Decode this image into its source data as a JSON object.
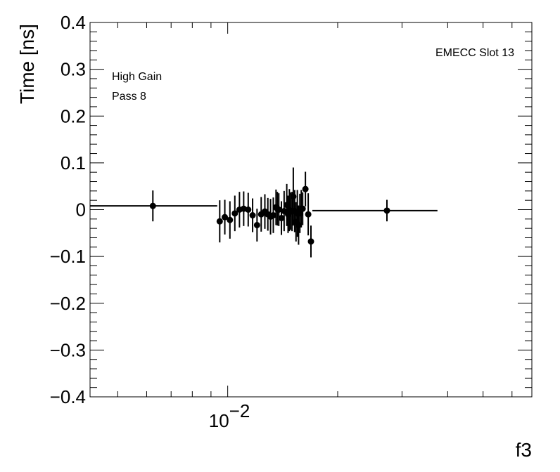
{
  "chart_data": {
    "type": "scatter",
    "ylabel": "Time [ns]",
    "xlabel": "f3",
    "xscale": "log",
    "xlim": [
      0.0042,
      0.068
    ],
    "ylim": [
      -0.4,
      0.4
    ],
    "grid": false,
    "yticks": [
      {
        "value": -0.4,
        "label": "−0.4"
      },
      {
        "value": -0.3,
        "label": "−0.3"
      },
      {
        "value": -0.2,
        "label": "−0.2"
      },
      {
        "value": -0.1,
        "label": "−0.1"
      },
      {
        "value": 0,
        "label": "0"
      },
      {
        "value": 0.1,
        "label": "0.1"
      },
      {
        "value": 0.2,
        "label": "0.2"
      },
      {
        "value": 0.3,
        "label": "0.3"
      },
      {
        "value": 0.4,
        "label": "0.4"
      }
    ],
    "xticks": [
      {
        "value": 0.01,
        "label_base": "10",
        "label_exp": "−2"
      }
    ],
    "annotations": {
      "top_right": "EMECC Slot 13",
      "line1": "High Gain",
      "line2": "Pass 8"
    },
    "points": [
      {
        "x": 0.00624,
        "y": 0.008,
        "xlo": 0.0042,
        "xhi": 0.00936,
        "yerr": 0.033
      },
      {
        "x": 0.00951,
        "y": -0.025,
        "xlo": 0.00936,
        "xhi": 0.00966,
        "yerr": 0.045
      },
      {
        "x": 0.00982,
        "y": -0.016,
        "xlo": 0.00966,
        "xhi": 0.00998,
        "yerr": 0.037
      },
      {
        "x": 0.01014,
        "y": -0.022,
        "xlo": 0.00998,
        "xhi": 0.0103,
        "yerr": 0.04
      },
      {
        "x": 0.01046,
        "y": -0.008,
        "xlo": 0.0103,
        "xhi": 0.01062,
        "yerr": 0.038
      },
      {
        "x": 0.01077,
        "y": 0.0,
        "xlo": 0.01062,
        "xhi": 0.01092,
        "yerr": 0.038
      },
      {
        "x": 0.01106,
        "y": 0.002,
        "xlo": 0.01092,
        "xhi": 0.01121,
        "yerr": 0.037
      },
      {
        "x": 0.01138,
        "y": 0.0,
        "xlo": 0.01121,
        "xhi": 0.01154,
        "yerr": 0.036
      },
      {
        "x": 0.0117,
        "y": -0.012,
        "xlo": 0.01154,
        "xhi": 0.01186,
        "yerr": 0.036
      },
      {
        "x": 0.01203,
        "y": -0.033,
        "xlo": 0.01186,
        "xhi": 0.01219,
        "yerr": 0.035
      },
      {
        "x": 0.01235,
        "y": -0.01,
        "xlo": 0.01219,
        "xhi": 0.01251,
        "yerr": 0.037
      },
      {
        "x": 0.01264,
        "y": -0.004,
        "xlo": 0.01251,
        "xhi": 0.01277,
        "yerr": 0.037
      },
      {
        "x": 0.01288,
        "y": -0.01,
        "xlo": 0.01277,
        "xhi": 0.01299,
        "yerr": 0.035
      },
      {
        "x": 0.0131,
        "y": -0.015,
        "xlo": 0.01299,
        "xhi": 0.01321,
        "yerr": 0.038
      },
      {
        "x": 0.01333,
        "y": -0.012,
        "xlo": 0.01321,
        "xhi": 0.01345,
        "yerr": 0.038
      },
      {
        "x": 0.01356,
        "y": 0.005,
        "xlo": 0.01345,
        "xhi": 0.01362,
        "yerr": 0.038
      },
      {
        "x": 0.01368,
        "y": 0.002,
        "xlo": 0.01362,
        "xhi": 0.01374,
        "yerr": 0.036
      },
      {
        "x": 0.0138,
        "y": 0.0,
        "xlo": 0.01374,
        "xhi": 0.01391,
        "yerr": 0.035
      },
      {
        "x": 0.01403,
        "y": -0.018,
        "xlo": 0.01391,
        "xhi": 0.01415,
        "yerr": 0.036
      },
      {
        "x": 0.01427,
        "y": -0.003,
        "xlo": 0.01415,
        "xhi": 0.01439,
        "yerr": 0.043
      },
      {
        "x": 0.01451,
        "y": 0.01,
        "xlo": 0.01439,
        "xhi": 0.01457,
        "yerr": 0.045
      },
      {
        "x": 0.01463,
        "y": -0.01,
        "xlo": 0.01457,
        "xhi": 0.01469,
        "yerr": 0.04
      },
      {
        "x": 0.01475,
        "y": -0.001,
        "xlo": 0.01469,
        "xhi": 0.01481,
        "yerr": 0.045
      },
      {
        "x": 0.01487,
        "y": -0.003,
        "xlo": 0.01481,
        "xhi": 0.01493,
        "yerr": 0.04
      },
      {
        "x": 0.015,
        "y": -0.004,
        "xlo": 0.01493,
        "xhi": 0.01506,
        "yerr": 0.042
      },
      {
        "x": 0.01512,
        "y": 0.028,
        "xlo": 0.01506,
        "xhi": 0.01518,
        "yerr": 0.062
      },
      {
        "x": 0.01525,
        "y": -0.003,
        "xlo": 0.01518,
        "xhi": 0.01531,
        "yerr": 0.045
      },
      {
        "x": 0.01538,
        "y": -0.026,
        "xlo": 0.01531,
        "xhi": 0.01544,
        "yerr": 0.042
      },
      {
        "x": 0.01551,
        "y": -0.008,
        "xlo": 0.01544,
        "xhi": 0.01557,
        "yerr": 0.05
      },
      {
        "x": 0.01563,
        "y": -0.033,
        "xlo": 0.01557,
        "xhi": 0.0157,
        "yerr": 0.042
      },
      {
        "x": 0.01576,
        "y": -0.008,
        "xlo": 0.0157,
        "xhi": 0.01583,
        "yerr": 0.042
      },
      {
        "x": 0.0159,
        "y": 0.002,
        "xlo": 0.01583,
        "xhi": 0.01597,
        "yerr": 0.04
      },
      {
        "x": 0.01604,
        "y": 0.002,
        "xlo": 0.01597,
        "xhi": 0.01618,
        "yerr": 0.035
      },
      {
        "x": 0.01632,
        "y": 0.044,
        "xlo": 0.01618,
        "xhi": 0.01646,
        "yerr": 0.037
      },
      {
        "x": 0.01661,
        "y": -0.01,
        "xlo": 0.01646,
        "xhi": 0.01675,
        "yerr": 0.045
      },
      {
        "x": 0.0169,
        "y": -0.068,
        "xlo": 0.01675,
        "xhi": 0.01705,
        "yerr": 0.034
      },
      {
        "x": 0.02728,
        "y": -0.002,
        "xlo": 0.01705,
        "xhi": 0.03751,
        "yerr": 0.023
      }
    ]
  }
}
